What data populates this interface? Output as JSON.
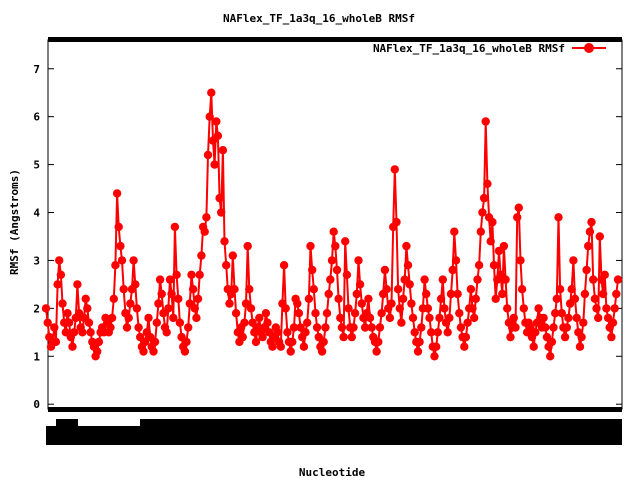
{
  "chart_data": {
    "type": "line",
    "title": "NAFlex_TF_1a3q_16_wholeB RMSf",
    "xlabel": "Nucleotide",
    "ylabel": "RMSf (Angstroms)",
    "ylim": [
      -0.1,
      7.6
    ],
    "yticks": [
      0,
      1,
      2,
      3,
      4,
      5,
      6,
      7
    ],
    "legend_position": "top-right",
    "series": [
      {
        "name": "NAFlex_TF_1a3q_16_wholeB RMSf",
        "color": "#ff0000",
        "marker": "filled-circle",
        "values": [
          2.0,
          1.7,
          1.4,
          1.2,
          1.3,
          1.6,
          1.3,
          2.5,
          3.0,
          2.7,
          2.1,
          1.7,
          1.5,
          1.9,
          1.7,
          1.4,
          1.2,
          1.5,
          1.8,
          2.5,
          1.9,
          1.6,
          1.5,
          1.8,
          2.2,
          2.0,
          1.7,
          1.5,
          1.3,
          1.2,
          1.0,
          1.1,
          1.3,
          1.5,
          1.6,
          1.5,
          1.8,
          1.7,
          1.5,
          1.6,
          1.8,
          2.2,
          2.9,
          4.4,
          3.7,
          3.3,
          3.0,
          2.4,
          1.9,
          1.6,
          1.8,
          2.1,
          2.4,
          3.0,
          2.5,
          2.0,
          1.6,
          1.4,
          1.2,
          1.1,
          1.3,
          1.5,
          1.8,
          1.4,
          1.2,
          1.1,
          1.3,
          1.7,
          2.1,
          2.6,
          2.3,
          1.9,
          1.6,
          1.5,
          2.0,
          2.6,
          2.3,
          1.8,
          3.7,
          2.7,
          2.2,
          1.7,
          1.4,
          1.2,
          1.1,
          1.3,
          1.6,
          2.1,
          2.7,
          2.4,
          2.0,
          1.8,
          2.2,
          2.7,
          3.1,
          3.7,
          3.6,
          3.9,
          5.2,
          6.0,
          6.5,
          5.5,
          5.0,
          5.9,
          5.6,
          4.3,
          4.0,
          5.3,
          3.4,
          2.9,
          2.4,
          2.1,
          2.3,
          3.1,
          2.4,
          1.9,
          1.5,
          1.3,
          1.6,
          1.4,
          1.7,
          2.1,
          3.3,
          2.4,
          2.0,
          1.7,
          1.5,
          1.3,
          1.6,
          1.8,
          1.5,
          1.4,
          1.6,
          1.9,
          1.7,
          1.5,
          1.3,
          1.2,
          1.4,
          1.6,
          1.5,
          1.3,
          1.2,
          2.1,
          2.9,
          2.0,
          1.5,
          1.3,
          1.1,
          1.3,
          1.6,
          2.2,
          2.1,
          1.9,
          1.6,
          1.4,
          1.2,
          1.5,
          1.7,
          2.2,
          3.3,
          2.8,
          2.4,
          1.9,
          1.6,
          1.4,
          1.2,
          1.1,
          1.3,
          1.6,
          1.9,
          2.3,
          2.6,
          3.0,
          3.6,
          3.3,
          2.8,
          2.2,
          1.8,
          1.6,
          1.4,
          3.4,
          2.7,
          2.0,
          1.6,
          1.4,
          1.6,
          1.9,
          2.3,
          3.0,
          2.5,
          2.1,
          1.8,
          1.6,
          1.9,
          2.2,
          1.8,
          1.6,
          1.4,
          1.3,
          1.1,
          1.3,
          1.6,
          1.9,
          2.3,
          2.8,
          2.4,
          2.0,
          1.8,
          2.1,
          3.7,
          4.9,
          3.8,
          2.4,
          2.0,
          1.7,
          2.2,
          2.6,
          3.3,
          2.9,
          2.5,
          2.1,
          1.8,
          1.5,
          1.3,
          1.1,
          1.3,
          1.6,
          2.0,
          2.6,
          2.3,
          2.0,
          1.8,
          1.5,
          1.2,
          1.0,
          1.2,
          1.5,
          1.8,
          2.2,
          2.6,
          2.0,
          1.7,
          1.5,
          1.8,
          2.3,
          2.8,
          3.6,
          3.0,
          2.3,
          1.9,
          1.6,
          1.4,
          1.2,
          1.4,
          1.7,
          2.0,
          2.4,
          2.0,
          1.8,
          2.2,
          2.6,
          2.9,
          3.6,
          4.0,
          4.3,
          5.9,
          4.6,
          3.9,
          3.4,
          3.8,
          2.9,
          2.2,
          2.6,
          3.2,
          2.7,
          2.3,
          3.3,
          2.6,
          2.0,
          1.7,
          1.4,
          1.6,
          1.8,
          1.6,
          3.9,
          4.1,
          3.0,
          2.4,
          2.0,
          1.7,
          1.5,
          1.7,
          1.6,
          1.4,
          1.2,
          1.5,
          1.7,
          2.0,
          1.8,
          1.6,
          1.8,
          1.6,
          1.4,
          1.2,
          1.0,
          1.3,
          1.6,
          1.9,
          2.2,
          3.9,
          2.4,
          1.9,
          1.6,
          1.4,
          1.6,
          1.8,
          2.1,
          2.4,
          3.0,
          2.2,
          1.8,
          1.5,
          1.2,
          1.4,
          1.7,
          2.3,
          2.8,
          3.3,
          3.6,
          3.8,
          2.6,
          2.2,
          2.0,
          1.8,
          3.5,
          2.6,
          2.3,
          2.7,
          2.0,
          1.8,
          1.6,
          1.4,
          1.7,
          2.0,
          2.3,
          2.6
        ]
      }
    ]
  }
}
